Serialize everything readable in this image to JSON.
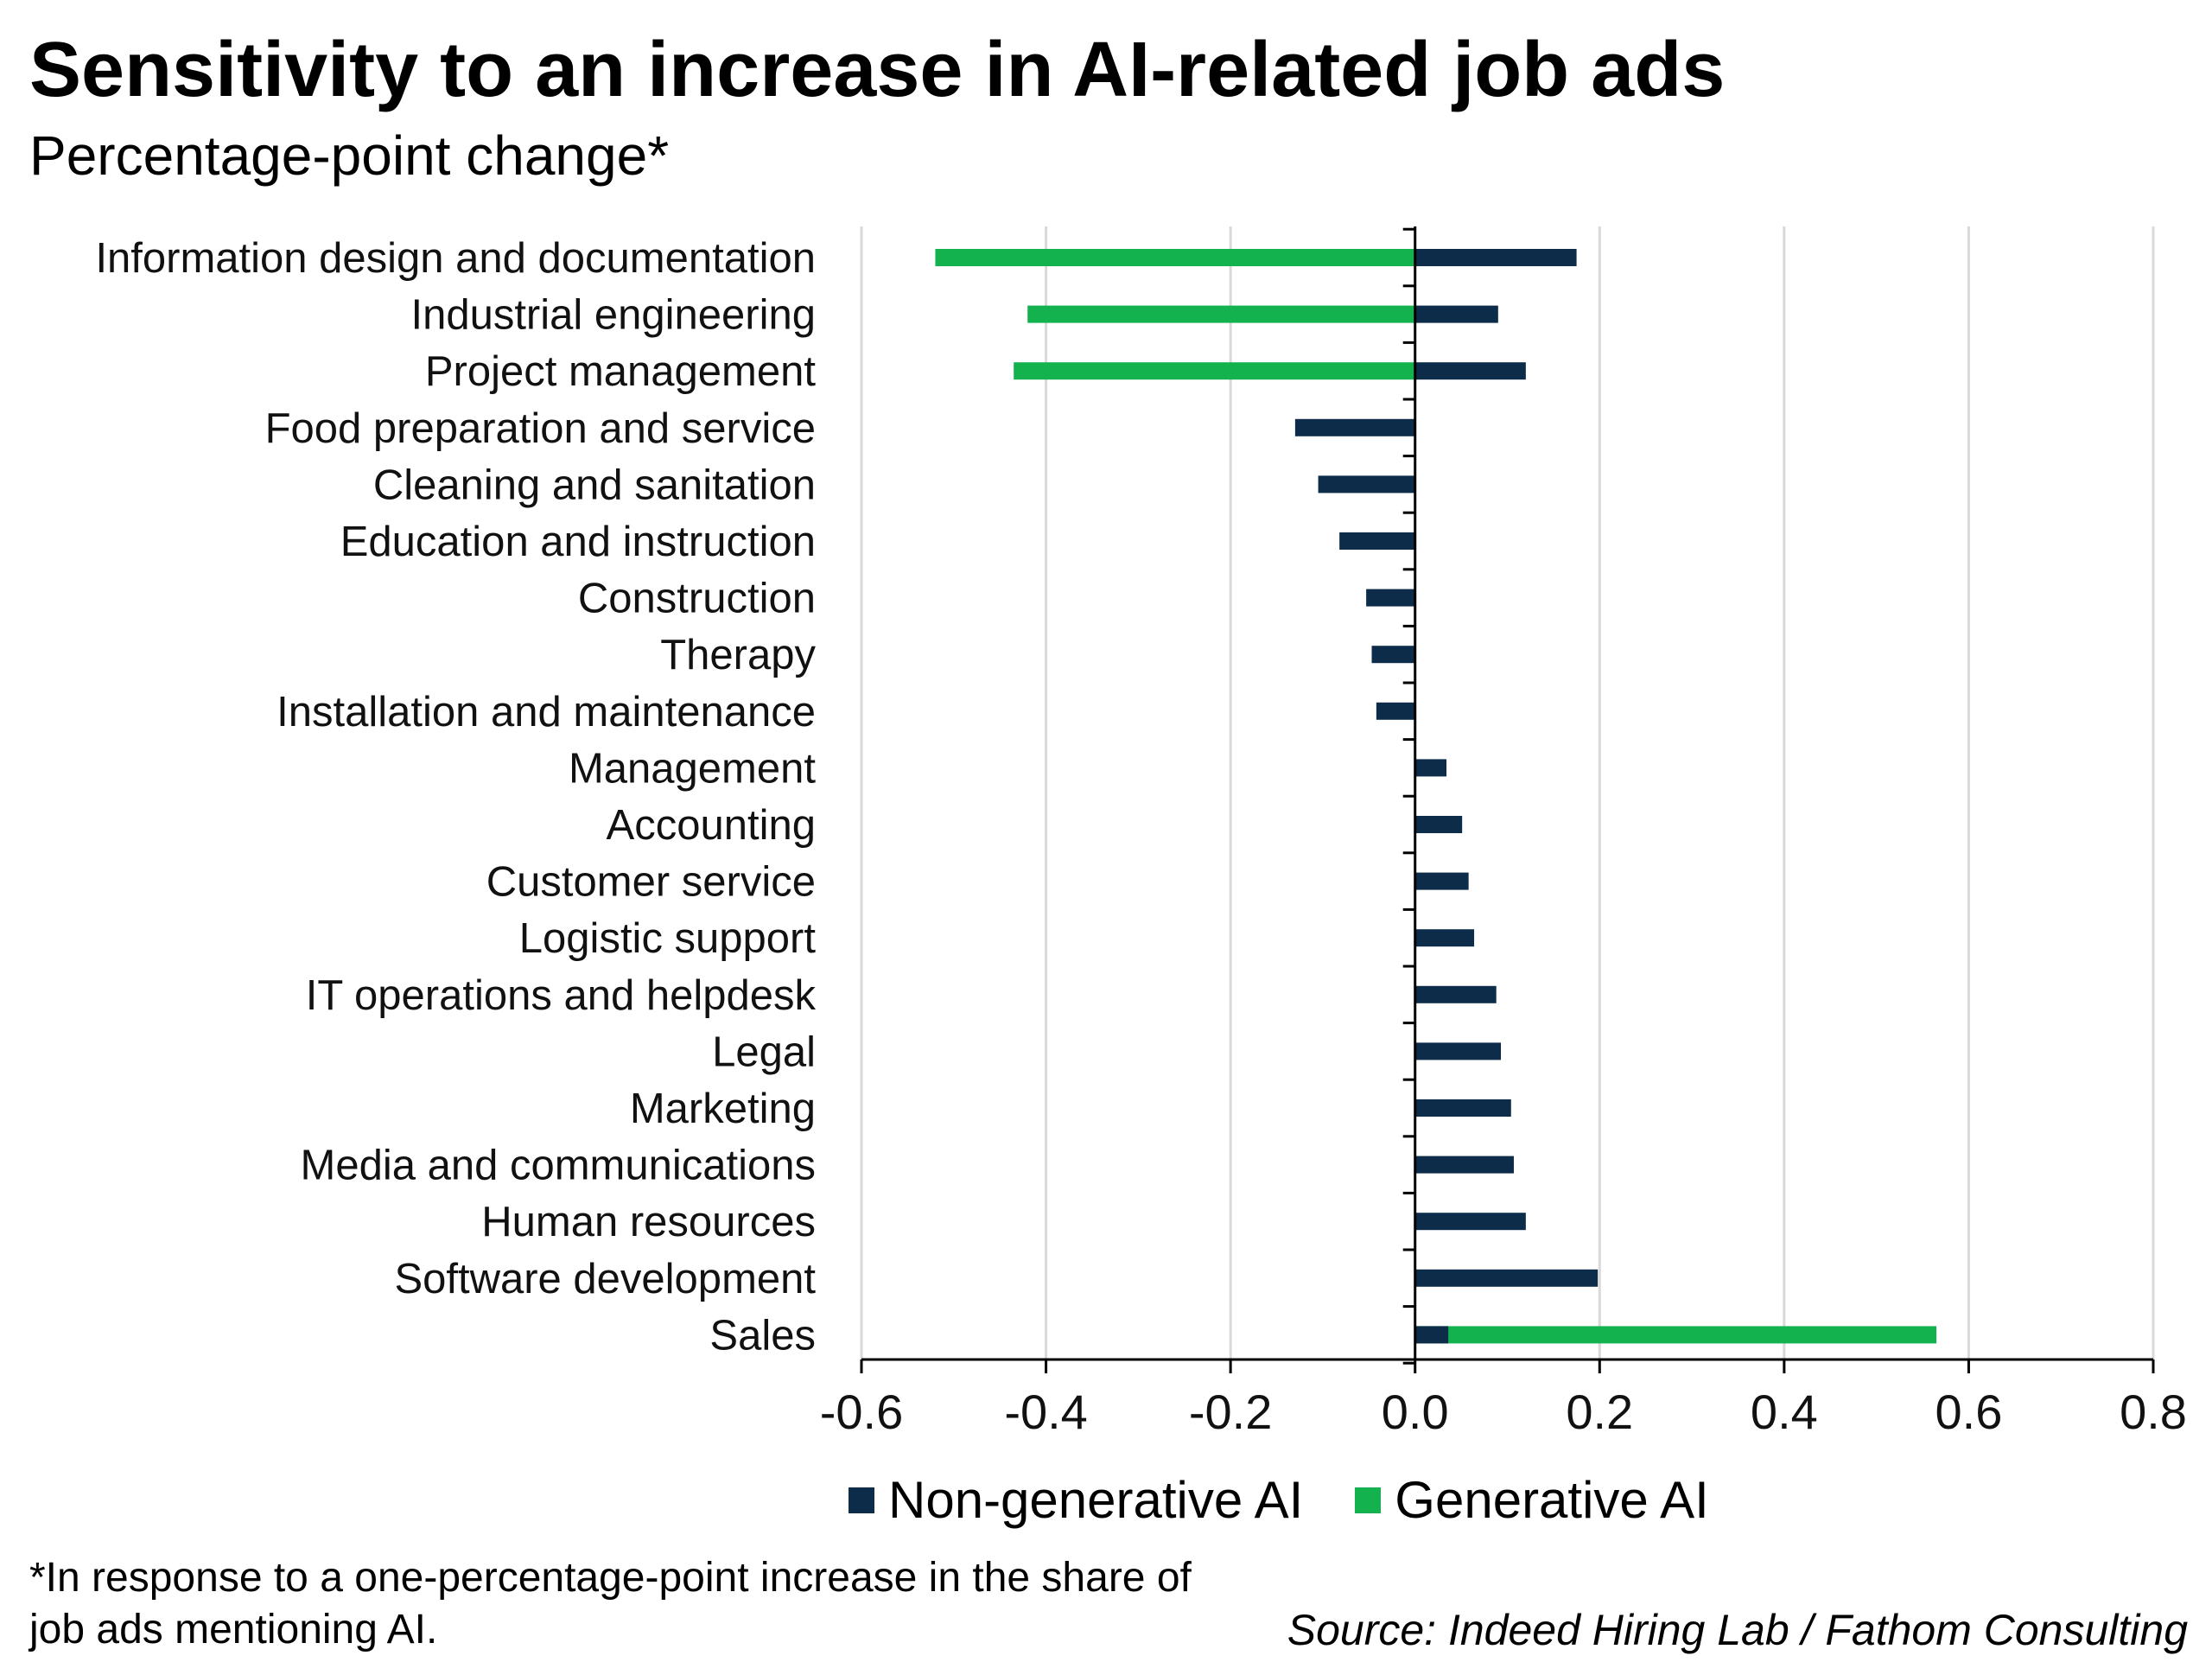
{
  "chart_data": {
    "type": "bar",
    "orientation": "horizontal",
    "title": "Sensitivity to an increase in AI-related job ads",
    "subtitle": "Percentage-point change*",
    "categories": [
      "Information design and documentation",
      "Industrial engineering",
      "Project management",
      "Food preparation and service",
      "Cleaning and sanitation",
      "Education and instruction",
      "Construction",
      "Therapy",
      "Installation and maintenance",
      "Management",
      "Accounting",
      "Customer service",
      "Logistic support",
      "IT operations and helpdesk",
      "Legal",
      "Marketing",
      "Media and communications",
      "Human resources",
      "Software development",
      "Sales"
    ],
    "series": [
      {
        "name": "Non-generative AI",
        "color": "#0c2c4a",
        "values": [
          0.175,
          0.09,
          0.12,
          -0.13,
          -0.105,
          -0.082,
          -0.053,
          -0.047,
          -0.042,
          0.034,
          0.051,
          0.058,
          0.064,
          0.088,
          0.093,
          0.104,
          0.107,
          0.12,
          0.198,
          0.036
        ]
      },
      {
        "name": "Generative AI",
        "color": "#13b24f",
        "values": [
          -0.52,
          -0.42,
          -0.435,
          0,
          0,
          0,
          0,
          0,
          0,
          0,
          0,
          0,
          0,
          0,
          0,
          0,
          0,
          0,
          0,
          0.565
        ]
      }
    ],
    "xlim": [
      -0.6,
      0.8
    ],
    "xticks": [
      -0.6,
      -0.4,
      -0.2,
      0.0,
      0.2,
      0.4,
      0.6,
      0.8
    ],
    "xtick_labels": [
      "-0.6",
      "-0.4",
      "-0.2",
      "0.0",
      "0.2",
      "0.4",
      "0.6",
      "0.8"
    ],
    "grid": "vertical",
    "legend_position": "bottom"
  },
  "footnote": "*In response to a one-percentage-point increase in the share of job ads mentioning AI.",
  "source": "Source: Indeed Hiring Lab / Fathom Consulting"
}
